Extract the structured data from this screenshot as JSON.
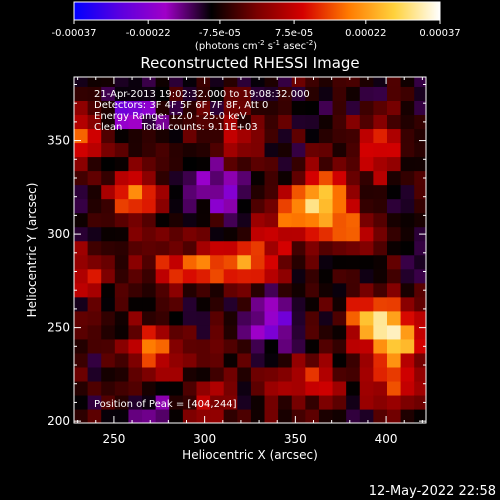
{
  "chart_data": {
    "type": "heatmap",
    "title": "Reconstructed RHESSI Image",
    "xlabel": "Heliocentric X (arcsec)",
    "ylabel": "Heliocentric Y (arcsec)",
    "xlim": [
      228,
      422
    ],
    "ylim": [
      199,
      384
    ],
    "x_ticks": [
      250,
      300,
      350,
      400
    ],
    "y_ticks": [
      200,
      250,
      300,
      350
    ],
    "colorbar": {
      "range": [
        -0.00037,
        0.00037
      ],
      "tick_values": [
        -0.00037,
        -0.00022,
        -7.5e-05,
        7.5e-05,
        0.00022,
        0.00037
      ],
      "tick_labels": [
        "-0.00037",
        "-0.00022",
        "-7.5e-05",
        "7.5e-05",
        "0.00022",
        "0.00037"
      ],
      "units_parts": [
        "(photons cm",
        "-2",
        " s",
        "-1",
        " asec",
        "-2",
        ")"
      ],
      "colormap": [
        "#0000ff",
        "#5a00e0",
        "#a000c8",
        "#000000",
        "#7a0000",
        "#d40000",
        "#ff7a00",
        "#ffd23c",
        "#ffffff"
      ]
    },
    "annotations": [
      "21-Apr-2013 19:02:32.000 to 19:08:32.000",
      "Detectors: 3F 4F 5F 6F 7F 8F, Att 0",
      "Energy Range: 12.0 - 25.0 keV",
      "Clean      Total counts: 9.11E+03"
    ],
    "peak_label": "Position of Peak = [404,244]",
    "peak": [
      404,
      244
    ],
    "sources": [
      {
        "x": 404,
        "y": 244,
        "sx": 12,
        "sy": 10,
        "amp": 0.00037
      },
      {
        "x": 392,
        "y": 257,
        "sx": 10,
        "sy": 8,
        "amp": 0.00026
      },
      {
        "x": 350,
        "y": 310,
        "sx": 11,
        "sy": 9,
        "amp": 0.0003
      },
      {
        "x": 364,
        "y": 323,
        "sx": 9,
        "sy": 8,
        "amp": 0.00028
      },
      {
        "x": 377,
        "y": 305,
        "sx": 9,
        "sy": 9,
        "amp": 0.00024
      },
      {
        "x": 262,
        "y": 321,
        "sx": 10,
        "sy": 9,
        "amp": 0.00028
      },
      {
        "x": 292,
        "y": 282,
        "sx": 16,
        "sy": 7,
        "amp": 0.00025
      },
      {
        "x": 324,
        "y": 287,
        "sx": 14,
        "sy": 8,
        "amp": 0.00024
      },
      {
        "x": 272,
        "y": 238,
        "sx": 12,
        "sy": 10,
        "amp": 0.00022
      },
      {
        "x": 233,
        "y": 355,
        "sx": 8,
        "sy": 9,
        "amp": 0.00022
      },
      {
        "x": 235,
        "y": 280,
        "sx": 8,
        "sy": 8,
        "amp": 0.00018
      },
      {
        "x": 318,
        "y": 350,
        "sx": 9,
        "sy": 8,
        "amp": 0.00016
      },
      {
        "x": 396,
        "y": 345,
        "sx": 9,
        "sy": 11,
        "amp": 0.0002
      },
      {
        "x": 356,
        "y": 222,
        "sx": 12,
        "sy": 9,
        "amp": 0.00018
      },
      {
        "x": 403,
        "y": 218,
        "sx": 10,
        "sy": 9,
        "amp": 0.00018
      },
      {
        "x": 300,
        "y": 212,
        "sx": 10,
        "sy": 8,
        "amp": 0.00012
      },
      {
        "x": 340,
        "y": 255,
        "sx": 9,
        "sy": 9,
        "amp": -0.0002
      },
      {
        "x": 260,
        "y": 365,
        "sx": 10,
        "sy": 8,
        "amp": -0.00018
      },
      {
        "x": 310,
        "y": 325,
        "sx": 12,
        "sy": 10,
        "amp": -0.00014
      },
      {
        "x": 275,
        "y": 205,
        "sx": 10,
        "sy": 8,
        "amp": -0.00012
      }
    ]
  },
  "footer": {
    "timestamp": "12-May-2022 22:58"
  }
}
